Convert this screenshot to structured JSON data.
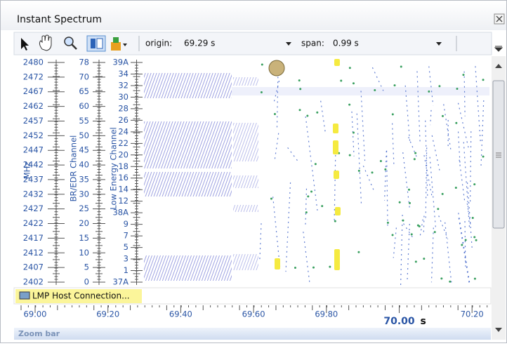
{
  "window": {
    "title": "Instant Spectrum"
  },
  "toolbar": {
    "origin_label": "origin:",
    "origin_value": "69.29 s",
    "span_label": "span:",
    "span_value": "0.99 s"
  },
  "axes": {
    "mhz": {
      "title": "MHz",
      "labels": [
        "2480",
        "2472",
        "2467",
        "2462",
        "2457",
        "2452",
        "2447",
        "2442",
        "2437",
        "2432",
        "2427",
        "2422",
        "2417",
        "2412",
        "2407",
        "2402"
      ]
    },
    "br_edr": {
      "title": "BR/EDR Channel",
      "labels": [
        "78",
        "70",
        "65",
        "60",
        "55",
        "50",
        "45",
        "40",
        "35",
        "30",
        "25",
        "20",
        "15",
        "10",
        "5",
        "0"
      ]
    },
    "low_energy": {
      "title": "Low Energy Channel",
      "labels": [
        "39A",
        "34",
        "32",
        "30",
        "28",
        "26",
        "24",
        "22",
        "20",
        "18",
        "16",
        "14",
        "12",
        "38A",
        "9",
        "7",
        "5",
        "3",
        "1",
        "37A"
      ]
    }
  },
  "status": {
    "item": "LMP Host Connection..."
  },
  "time_axis": {
    "labels": [
      "69.00",
      "69.20",
      "69.40",
      "69.60",
      "69.80",
      "70.00",
      "70.20"
    ],
    "cursor_index": 5,
    "unit": "s"
  },
  "zoom_bar": {
    "label": "Zoom bar"
  }
}
